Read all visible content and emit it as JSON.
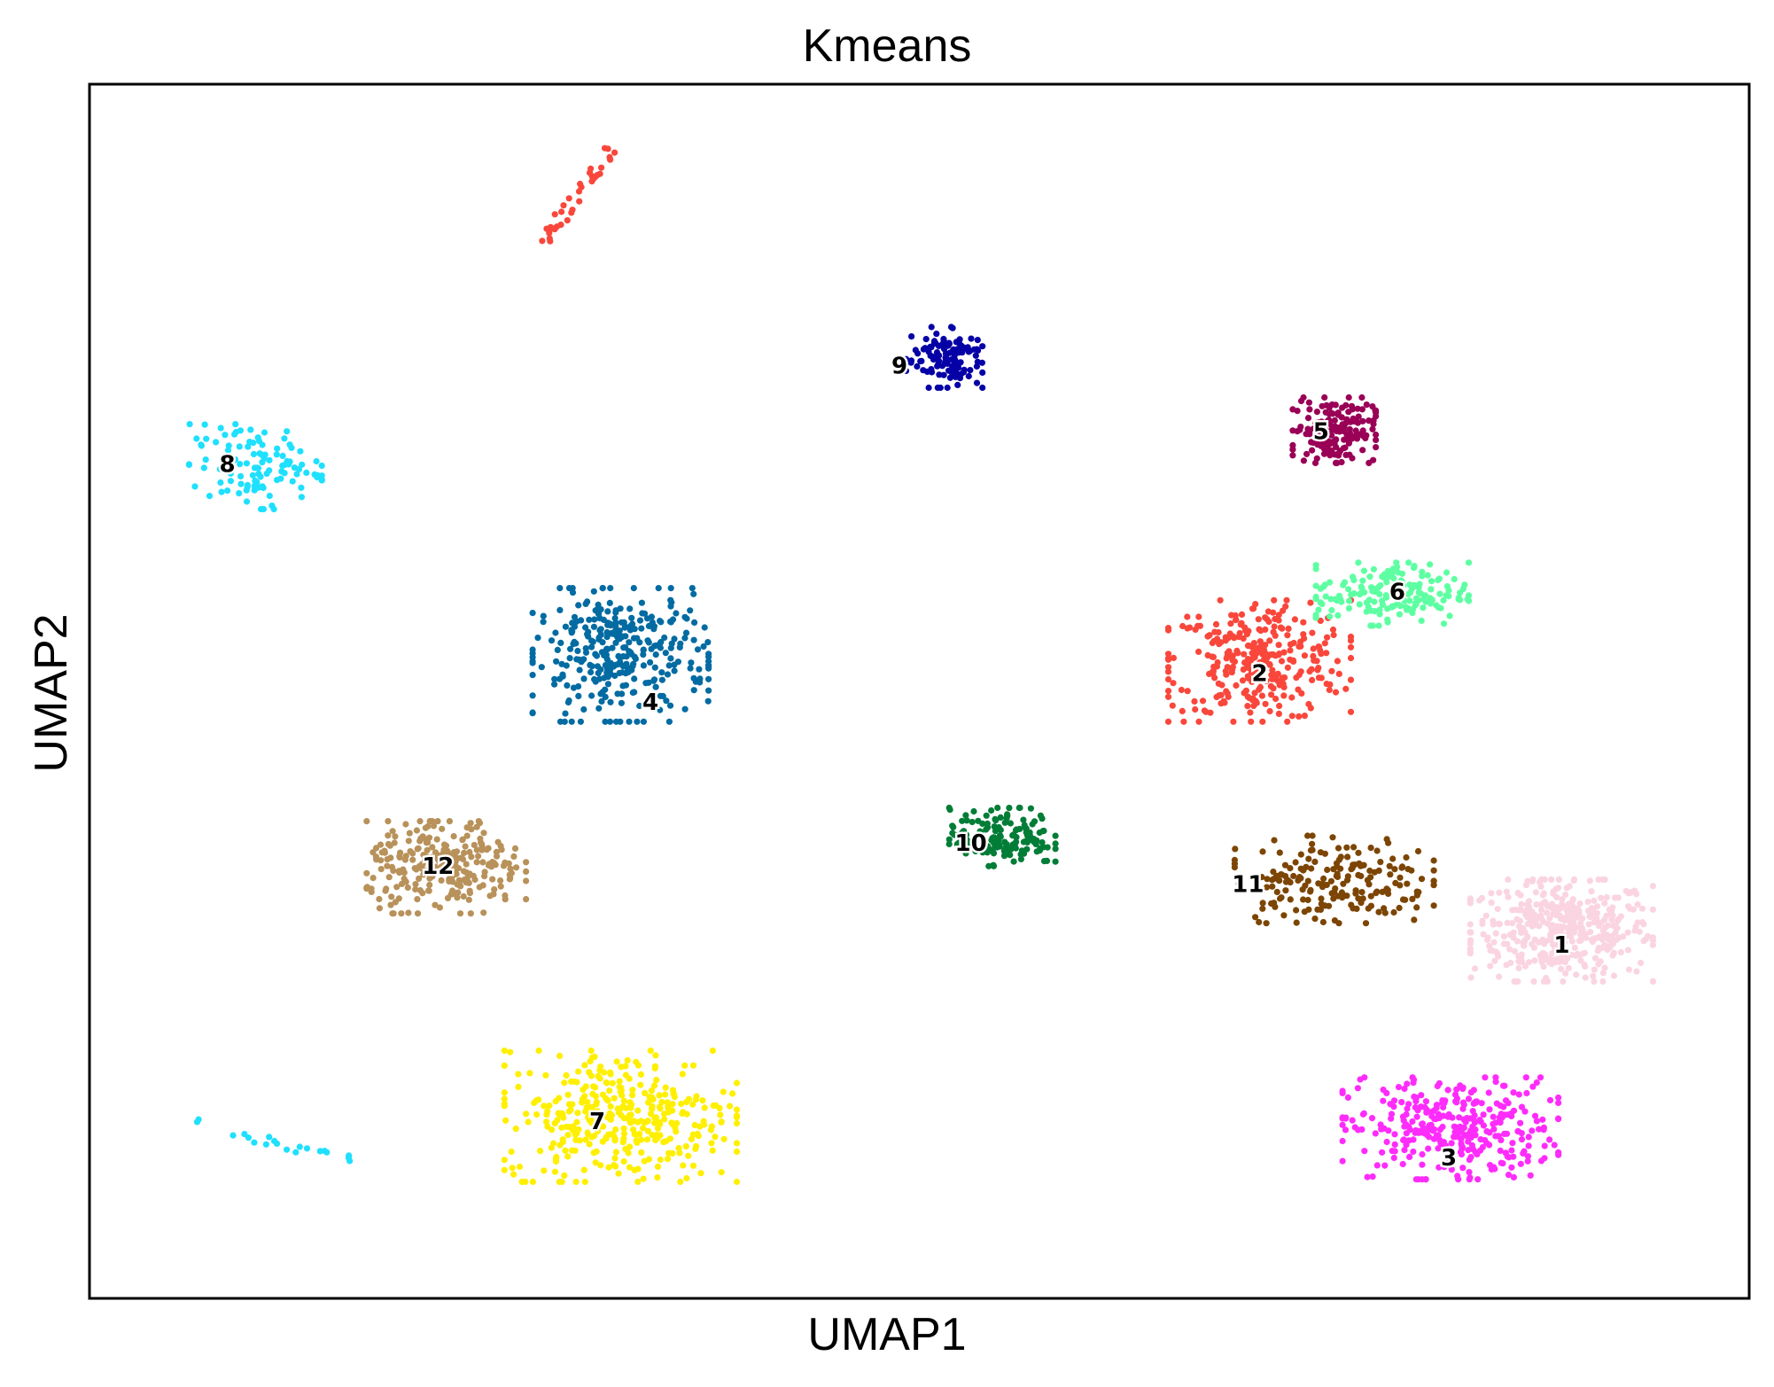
{
  "chart_data": {
    "type": "scatter",
    "title": "Kmeans",
    "xlabel": "UMAP1",
    "ylabel": "UMAP2",
    "xlim": [
      0,
      100
    ],
    "ylim": [
      0,
      100
    ],
    "grid": false,
    "ticks": "none",
    "clusters": [
      {
        "label": "1",
        "color": "#fad5e1",
        "center": [
          88.7,
          30.3
        ],
        "spread": [
          5.5,
          4.2
        ],
        "n": 420,
        "label_pos": [
          88.7,
          29.0
        ]
      },
      {
        "label": "2",
        "color": "#f9473c",
        "center": [
          70.5,
          52.5
        ],
        "spread": [
          5.5,
          5.0
        ],
        "n": 300,
        "label_pos": [
          70.5,
          51.4
        ]
      },
      {
        "label": "3",
        "color": "#fe2cfb",
        "center": [
          82.0,
          14.0
        ],
        "spread": [
          6.5,
          4.2
        ],
        "n": 330,
        "label_pos": [
          81.9,
          11.5
        ]
      },
      {
        "label": "4",
        "color": "#026ba2",
        "center": [
          32.0,
          53.0
        ],
        "spread": [
          5.3,
          5.5
        ],
        "n": 320,
        "label_pos": [
          33.8,
          49.0
        ]
      },
      {
        "label": "5",
        "color": "#990056",
        "center": [
          75.0,
          71.5
        ],
        "spread": [
          2.5,
          2.7
        ],
        "n": 160,
        "label_pos": [
          74.2,
          71.3
        ]
      },
      {
        "label": "6",
        "color": "#5effa2",
        "center": [
          78.5,
          58.0
        ],
        "spread": [
          4.6,
          2.6
        ],
        "n": 170,
        "label_pos": [
          78.8,
          58.1
        ]
      },
      {
        "label": "7",
        "color": "#ffef00",
        "center": [
          32.0,
          15.0
        ],
        "spread": [
          7.0,
          5.4
        ],
        "n": 360,
        "label_pos": [
          30.6,
          14.5
        ]
      },
      {
        "label": "8",
        "color": "#1fe0fe",
        "center": [
          10.0,
          68.5
        ],
        "spread": [
          4.0,
          3.5
        ],
        "n": 110,
        "label_pos": [
          8.3,
          68.6
        ]
      },
      {
        "label": "9",
        "color": "#0601a6",
        "center": [
          51.5,
          77.5
        ],
        "spread": [
          2.3,
          2.5
        ],
        "n": 120,
        "label_pos": [
          48.8,
          76.7
        ]
      },
      {
        "label": "10",
        "color": "#027d37",
        "center": [
          55.0,
          38.0
        ],
        "spread": [
          3.2,
          2.4
        ],
        "n": 150,
        "label_pos": [
          53.1,
          37.4
        ]
      },
      {
        "label": "11",
        "color": "#7c4504",
        "center": [
          75.0,
          34.5
        ],
        "spread": [
          6.0,
          3.6
        ],
        "n": 190,
        "label_pos": [
          69.8,
          34.0
        ]
      },
      {
        "label": "12",
        "color": "#b8925a",
        "center": [
          21.5,
          35.5
        ],
        "spread": [
          4.8,
          3.8
        ],
        "n": 260,
        "label_pos": [
          21.0,
          35.5
        ]
      }
    ],
    "unlabeled_groups": [
      {
        "color": "#f9473c",
        "region": "top-left streak",
        "center": [
          29.5,
          91.0
        ],
        "n": 35
      },
      {
        "color": "#1fe0fe",
        "region": "bottom-left streak",
        "center": [
          11.0,
          13.0
        ],
        "n": 20
      }
    ]
  }
}
